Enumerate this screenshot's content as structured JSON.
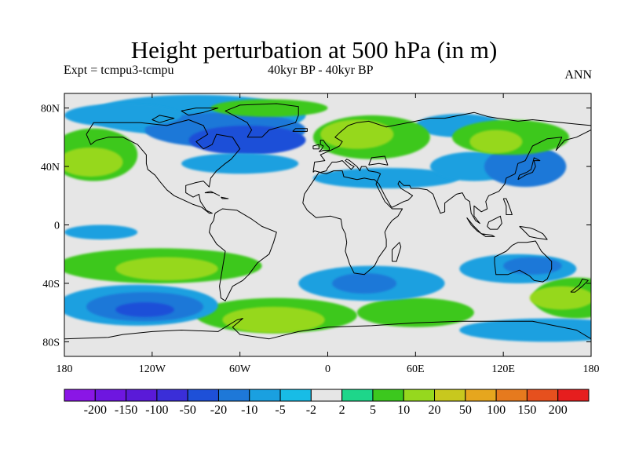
{
  "title": "Height perturbation at 500 hPa (in m)",
  "subtitle_left": "Expt = tcmpu3-tcmpu",
  "subtitle_center": "40kyr BP - 40kyr BP",
  "subtitle_right": "ANN",
  "lat_ticks": [
    {
      "lat": 80,
      "label": "80N"
    },
    {
      "lat": 40,
      "label": "40N"
    },
    {
      "lat": 0,
      "label": "0"
    },
    {
      "lat": -40,
      "label": "40S"
    },
    {
      "lat": -80,
      "label": "80S"
    }
  ],
  "lon_ticks": [
    {
      "lon": -180,
      "label": "180"
    },
    {
      "lon": -120,
      "label": "120W"
    },
    {
      "lon": -60,
      "label": "60W"
    },
    {
      "lon": 0,
      "label": "0"
    },
    {
      "lon": 60,
      "label": "60E"
    },
    {
      "lon": 120,
      "label": "120E"
    },
    {
      "lon": 180,
      "label": "180"
    }
  ],
  "colorbar": {
    "colors": [
      "#8a16e6",
      "#6e16e0",
      "#5a1ad8",
      "#3a2ed8",
      "#1e50d8",
      "#1e78d8",
      "#1aa0e0",
      "#18bce6",
      "#e6e6e6",
      "#1ed68a",
      "#3cc81e",
      "#96d81e",
      "#c8c81e",
      "#e6a61e",
      "#e67a1e",
      "#e6501e",
      "#e61e1e"
    ],
    "levels": [
      "-200",
      "-150",
      "-100",
      "-50",
      "-20",
      "-10",
      "-5",
      "-2",
      "2",
      "5",
      "10",
      "20",
      "50",
      "100",
      "150",
      "200"
    ]
  },
  "map_extent": {
    "lon": [
      -180,
      180
    ],
    "lat": [
      -90,
      90
    ]
  },
  "field_regions": [
    {
      "level": "-5",
      "lon": -90,
      "lat": 75,
      "rlon": 75,
      "rlat": 14
    },
    {
      "level": "-10",
      "lon": -70,
      "lat": 65,
      "rlon": 55,
      "rlat": 12
    },
    {
      "level": "-20",
      "lon": -55,
      "lat": 58,
      "rlon": 40,
      "rlat": 10
    },
    {
      "level": "-5",
      "lon": -60,
      "lat": 42,
      "rlon": 40,
      "rlat": 7
    },
    {
      "level": "-5",
      "lon": 40,
      "lat": 32,
      "rlon": 50,
      "rlat": 7
    },
    {
      "level": "-5",
      "lon": 100,
      "lat": 40,
      "rlon": 30,
      "rlat": 10
    },
    {
      "level": "-10",
      "lon": 135,
      "lat": 40,
      "rlon": 28,
      "rlat": 14
    },
    {
      "level": "-5",
      "lon": 90,
      "lat": 68,
      "rlon": 30,
      "rlat": 8
    },
    {
      "level": "-5",
      "lon": -140,
      "lat": 75,
      "rlon": 40,
      "rlat": 8
    },
    {
      "level": "5",
      "lon": -160,
      "lat": 48,
      "rlon": 30,
      "rlat": 18
    },
    {
      "level": "10",
      "lon": -162,
      "lat": 43,
      "rlon": 22,
      "rlat": 10
    },
    {
      "level": "5",
      "lon": 30,
      "lat": 60,
      "rlon": 40,
      "rlat": 15
    },
    {
      "level": "10",
      "lon": 20,
      "lat": 62,
      "rlon": 25,
      "rlat": 10
    },
    {
      "level": "5",
      "lon": 125,
      "lat": 60,
      "rlon": 40,
      "rlat": 12
    },
    {
      "level": "10",
      "lon": 115,
      "lat": 57,
      "rlon": 18,
      "rlat": 8
    },
    {
      "level": "5",
      "lon": -40,
      "lat": 80,
      "rlon": 40,
      "rlat": 6
    },
    {
      "level": "5",
      "lon": -115,
      "lat": -28,
      "rlon": 70,
      "rlat": 12
    },
    {
      "level": "10",
      "lon": -110,
      "lat": -30,
      "rlon": 35,
      "rlat": 8
    },
    {
      "level": "5",
      "lon": -35,
      "lat": -62,
      "rlon": 55,
      "rlat": 12
    },
    {
      "level": "10",
      "lon": -37,
      "lat": -65,
      "rlon": 35,
      "rlat": 9
    },
    {
      "level": "5",
      "lon": 60,
      "lat": -60,
      "rlon": 40,
      "rlat": 10
    },
    {
      "level": "5",
      "lon": 170,
      "lat": -50,
      "rlon": 30,
      "rlat": 14
    },
    {
      "level": "10",
      "lon": 160,
      "lat": -50,
      "rlon": 22,
      "rlat": 8
    },
    {
      "level": "-5",
      "lon": -130,
      "lat": -55,
      "rlon": 55,
      "rlat": 14
    },
    {
      "level": "-10",
      "lon": -125,
      "lat": -56,
      "rlon": 40,
      "rlat": 10
    },
    {
      "level": "-20",
      "lon": -125,
      "lat": -58,
      "rlon": 20,
      "rlat": 5
    },
    {
      "level": "-5",
      "lon": 30,
      "lat": -40,
      "rlon": 50,
      "rlat": 12
    },
    {
      "level": "-10",
      "lon": 25,
      "lat": -40,
      "rlon": 22,
      "rlat": 7
    },
    {
      "level": "-5",
      "lon": 130,
      "lat": -30,
      "rlon": 40,
      "rlat": 10
    },
    {
      "level": "-10",
      "lon": 140,
      "lat": -28,
      "rlon": 20,
      "rlat": 6
    },
    {
      "level": "-5",
      "lon": 150,
      "lat": -72,
      "rlon": 60,
      "rlat": 8
    },
    {
      "level": "-5",
      "lon": -155,
      "lat": -5,
      "rlon": 25,
      "rlat": 5
    }
  ],
  "coastlines": [
    [
      [
        -165,
        62
      ],
      [
        -160,
        70
      ],
      [
        -140,
        70
      ],
      [
        -128,
        70
      ],
      [
        -110,
        68
      ],
      [
        -95,
        72
      ],
      [
        -85,
        68
      ],
      [
        -82,
        62
      ],
      [
        -90,
        57
      ],
      [
        -85,
        52
      ],
      [
        -79,
        55
      ],
      [
        -76,
        62
      ],
      [
        -65,
        60
      ],
      [
        -60,
        52
      ],
      [
        -66,
        45
      ],
      [
        -70,
        42
      ],
      [
        -76,
        37
      ],
      [
        -80,
        32
      ],
      [
        -81,
        26
      ],
      [
        -85,
        30
      ],
      [
        -90,
        29
      ],
      [
        -97,
        27
      ],
      [
        -97,
        22
      ],
      [
        -92,
        19
      ],
      [
        -88,
        21
      ],
      [
        -87,
        16
      ],
      [
        -83,
        10
      ],
      [
        -79,
        8
      ],
      [
        -81,
        8
      ],
      [
        -86,
        12
      ],
      [
        -92,
        14
      ],
      [
        -105,
        20
      ],
      [
        -110,
        24
      ],
      [
        -115,
        30
      ],
      [
        -118,
        34
      ],
      [
        -123,
        38
      ],
      [
        -124,
        42
      ],
      [
        -124,
        48
      ],
      [
        -130,
        55
      ],
      [
        -140,
        60
      ],
      [
        -150,
        60
      ],
      [
        -158,
        58
      ],
      [
        -162,
        55
      ],
      [
        -165,
        62
      ]
    ],
    [
      [
        -77,
        8
      ],
      [
        -72,
        11
      ],
      [
        -62,
        10
      ],
      [
        -52,
        4
      ],
      [
        -45,
        -1
      ],
      [
        -35,
        -5
      ],
      [
        -37,
        -12
      ],
      [
        -40,
        -20
      ],
      [
        -48,
        -26
      ],
      [
        -54,
        -34
      ],
      [
        -58,
        -38
      ],
      [
        -65,
        -42
      ],
      [
        -67,
        -46
      ],
      [
        -70,
        -52
      ],
      [
        -73,
        -50
      ],
      [
        -74,
        -42
      ],
      [
        -72,
        -30
      ],
      [
        -70,
        -18
      ],
      [
        -76,
        -13
      ],
      [
        -81,
        -5
      ],
      [
        -80,
        0
      ],
      [
        -78,
        3
      ],
      [
        -77,
        8
      ]
    ],
    [
      [
        -10,
        36
      ],
      [
        -9,
        43
      ],
      [
        -2,
        44
      ],
      [
        -5,
        48
      ],
      [
        2,
        51
      ],
      [
        8,
        54
      ],
      [
        10,
        57
      ],
      [
        5,
        60
      ],
      [
        8,
        63
      ],
      [
        14,
        68
      ],
      [
        20,
        70
      ],
      [
        28,
        71
      ],
      [
        40,
        67
      ],
      [
        45,
        68
      ],
      [
        55,
        70
      ],
      [
        70,
        73
      ],
      [
        80,
        73
      ],
      [
        100,
        77
      ],
      [
        110,
        74
      ],
      [
        130,
        71
      ],
      [
        140,
        72
      ],
      [
        160,
        70
      ],
      [
        170,
        69
      ],
      [
        180,
        68
      ],
      [
        180,
        65
      ],
      [
        170,
        60
      ],
      [
        162,
        58
      ],
      [
        156,
        51
      ],
      [
        160,
        60
      ],
      [
        150,
        59
      ],
      [
        140,
        54
      ],
      [
        135,
        44
      ],
      [
        130,
        42
      ],
      [
        128,
        35
      ],
      [
        122,
        32
      ],
      [
        121,
        28
      ],
      [
        117,
        23
      ],
      [
        110,
        20
      ],
      [
        108,
        16
      ],
      [
        109,
        11
      ],
      [
        105,
        9
      ],
      [
        100,
        13
      ],
      [
        100,
        6
      ],
      [
        104,
        1
      ],
      [
        101,
        3
      ],
      [
        98,
        8
      ],
      [
        97,
        16
      ],
      [
        94,
        18
      ],
      [
        92,
        22
      ],
      [
        88,
        21
      ],
      [
        80,
        15
      ],
      [
        80,
        9
      ],
      [
        77,
        8
      ],
      [
        73,
        18
      ],
      [
        72,
        21
      ],
      [
        68,
        24
      ],
      [
        62,
        25
      ],
      [
        57,
        25
      ],
      [
        56,
        27
      ],
      [
        52,
        27
      ],
      [
        49,
        30
      ],
      [
        48,
        28
      ],
      [
        50,
        25
      ],
      [
        55,
        22
      ],
      [
        58,
        20
      ],
      [
        55,
        17
      ],
      [
        52,
        16
      ],
      [
        48,
        14
      ],
      [
        44,
        12
      ],
      [
        43,
        13
      ],
      [
        39,
        20
      ],
      [
        35,
        28
      ],
      [
        33,
        30
      ],
      [
        32,
        31
      ],
      [
        30,
        31
      ],
      [
        25,
        32
      ],
      [
        20,
        31
      ],
      [
        11,
        33
      ],
      [
        10,
        37
      ],
      [
        4,
        37
      ],
      [
        -1,
        35
      ],
      [
        -6,
        36
      ],
      [
        -10,
        30
      ],
      [
        -16,
        21
      ],
      [
        -17,
        15
      ],
      [
        -14,
        10
      ],
      [
        -8,
        5
      ],
      [
        2,
        6
      ],
      [
        9,
        4
      ],
      [
        10,
        -2
      ],
      [
        12,
        -6
      ],
      [
        13,
        -12
      ],
      [
        12,
        -18
      ],
      [
        15,
        -27
      ],
      [
        18,
        -33
      ],
      [
        25,
        -34
      ],
      [
        32,
        -28
      ],
      [
        35,
        -22
      ],
      [
        40,
        -15
      ],
      [
        40,
        -10
      ],
      [
        39,
        -5
      ],
      [
        41,
        -1
      ],
      [
        44,
        3
      ],
      [
        48,
        6
      ],
      [
        51,
        11
      ],
      [
        44,
        11
      ],
      [
        39,
        16
      ],
      [
        35,
        24
      ],
      [
        33,
        28
      ],
      [
        36,
        35
      ],
      [
        34,
        36
      ],
      [
        28,
        37
      ],
      [
        26,
        40
      ],
      [
        23,
        40
      ],
      [
        22,
        37
      ],
      [
        20,
        40
      ],
      [
        15,
        44
      ],
      [
        13,
        45
      ],
      [
        12,
        44
      ],
      [
        16,
        41
      ],
      [
        18,
        40
      ],
      [
        16,
        38
      ],
      [
        13,
        41
      ],
      [
        10,
        44
      ],
      [
        6,
        43
      ],
      [
        3,
        43
      ],
      [
        0,
        39
      ],
      [
        -1,
        37
      ],
      [
        -5,
        36
      ],
      [
        -9,
        37
      ],
      [
        -10,
        36
      ]
    ],
    [
      [
        28,
        41
      ],
      [
        35,
        42
      ],
      [
        41,
        41
      ],
      [
        39,
        47
      ],
      [
        30,
        46
      ],
      [
        28,
        41
      ]
    ],
    [
      [
        -55,
        60
      ],
      [
        -45,
        60
      ],
      [
        -40,
        65
      ],
      [
        -22,
        70
      ],
      [
        -20,
        75
      ],
      [
        -20,
        81
      ],
      [
        -35,
        83
      ],
      [
        -60,
        82
      ],
      [
        -70,
        78
      ],
      [
        -55,
        70
      ],
      [
        -52,
        65
      ],
      [
        -55,
        60
      ]
    ],
    [
      [
        114,
        -22
      ],
      [
        114,
        -26
      ],
      [
        115,
        -34
      ],
      [
        123,
        -34
      ],
      [
        131,
        -31
      ],
      [
        138,
        -35
      ],
      [
        141,
        -38
      ],
      [
        147,
        -39
      ],
      [
        150,
        -37
      ],
      [
        153,
        -30
      ],
      [
        153,
        -25
      ],
      [
        146,
        -18
      ],
      [
        142,
        -11
      ],
      [
        136,
        -12
      ],
      [
        130,
        -12
      ],
      [
        126,
        -14
      ],
      [
        122,
        -18
      ],
      [
        114,
        -22
      ]
    ],
    [
      [
        95,
        5
      ],
      [
        100,
        -1
      ],
      [
        105,
        -6
      ],
      [
        102,
        -4
      ],
      [
        98,
        0
      ],
      [
        95,
        5
      ]
    ],
    [
      [
        109,
        -1
      ],
      [
        110,
        2
      ],
      [
        114,
        4
      ],
      [
        118,
        6
      ],
      [
        119,
        1
      ],
      [
        116,
        -3
      ],
      [
        111,
        -3
      ],
      [
        109,
        -1
      ]
    ],
    [
      [
        105,
        -6
      ],
      [
        112,
        -7
      ],
      [
        114,
        -8
      ],
      [
        108,
        -8
      ],
      [
        105,
        -6
      ]
    ],
    [
      [
        131,
        -1
      ],
      [
        138,
        -2
      ],
      [
        141,
        -3
      ],
      [
        147,
        -6
      ],
      [
        150,
        -10
      ],
      [
        143,
        -9
      ],
      [
        138,
        -8
      ],
      [
        134,
        -4
      ],
      [
        131,
        -1
      ]
    ],
    [
      [
        130,
        31
      ],
      [
        135,
        34
      ],
      [
        140,
        36
      ],
      [
        142,
        40
      ],
      [
        141,
        44
      ],
      [
        145,
        44
      ],
      [
        141,
        46
      ],
      [
        139,
        38
      ],
      [
        136,
        36
      ],
      [
        131,
        34
      ],
      [
        130,
        31
      ]
    ],
    [
      [
        -6,
        50
      ],
      [
        -3,
        51
      ],
      [
        1,
        51
      ],
      [
        1,
        53
      ],
      [
        -1,
        55
      ],
      [
        -3,
        58
      ],
      [
        -5,
        58
      ],
      [
        -5,
        55
      ],
      [
        -3,
        54
      ],
      [
        -4,
        52
      ],
      [
        -6,
        50
      ]
    ],
    [
      [
        -10,
        52
      ],
      [
        -6,
        52
      ],
      [
        -6,
        55
      ],
      [
        -10,
        54
      ],
      [
        -10,
        52
      ]
    ],
    [
      [
        -24,
        64
      ],
      [
        -14,
        64
      ],
      [
        -14,
        66
      ],
      [
        -22,
        66
      ],
      [
        -24,
        64
      ]
    ],
    [
      [
        44,
        -25
      ],
      [
        47,
        -25
      ],
      [
        50,
        -15
      ],
      [
        49,
        -12
      ],
      [
        44,
        -17
      ],
      [
        44,
        -25
      ]
    ],
    [
      [
        120,
        18
      ],
      [
        122,
        18
      ],
      [
        124,
        13
      ],
      [
        126,
        7
      ],
      [
        122,
        7
      ],
      [
        122,
        13
      ],
      [
        120,
        18
      ]
    ],
    [
      [
        166,
        -46
      ],
      [
        172,
        -41
      ],
      [
        174,
        -37
      ],
      [
        178,
        -38
      ],
      [
        174,
        -42
      ],
      [
        169,
        -46
      ],
      [
        166,
        -46
      ]
    ],
    [
      [
        -180,
        -78
      ],
      [
        -150,
        -77
      ],
      [
        -140,
        -75
      ],
      [
        -120,
        -73
      ],
      [
        -100,
        -72
      ],
      [
        -75,
        -73
      ],
      [
        -62,
        -65
      ],
      [
        -58,
        -64
      ],
      [
        -65,
        -70
      ],
      [
        -60,
        -75
      ],
      [
        -40,
        -78
      ],
      [
        -20,
        -73
      ],
      [
        0,
        -70
      ],
      [
        30,
        -69
      ],
      [
        60,
        -67
      ],
      [
        90,
        -66
      ],
      [
        120,
        -66
      ],
      [
        140,
        -66
      ],
      [
        160,
        -70
      ],
      [
        170,
        -72
      ],
      [
        180,
        -78
      ]
    ],
    [
      [
        -84,
        22
      ],
      [
        -78,
        22
      ],
      [
        -74,
        20
      ],
      [
        -80,
        23
      ],
      [
        -84,
        22
      ]
    ],
    [
      [
        -73,
        19
      ],
      [
        -68,
        18
      ],
      [
        -72,
        18
      ],
      [
        -73,
        19
      ]
    ],
    [
      [
        -95,
        75
      ],
      [
        -85,
        77
      ],
      [
        -75,
        80
      ],
      [
        -90,
        80
      ],
      [
        -100,
        78
      ],
      [
        -95,
        75
      ]
    ],
    [
      [
        -115,
        70
      ],
      [
        -105,
        73
      ],
      [
        -115,
        75
      ],
      [
        -120,
        72
      ],
      [
        -115,
        70
      ]
    ]
  ]
}
